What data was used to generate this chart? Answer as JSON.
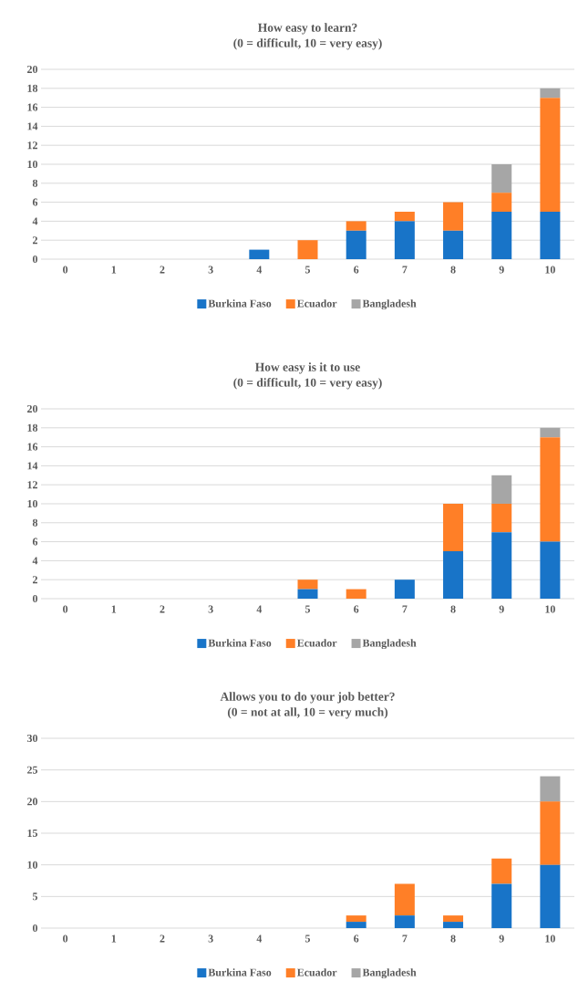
{
  "chart_data": [
    {
      "type": "bar",
      "title": "How easy to learn?",
      "subtitle": "(0 = difficult,     10 = very easy)",
      "categories": [
        "0",
        "1",
        "2",
        "3",
        "4",
        "5",
        "6",
        "7",
        "8",
        "9",
        "10"
      ],
      "stacked": true,
      "grid": "y",
      "legend": "bottom",
      "ylim": [
        0,
        20
      ],
      "yticks": [
        0,
        2,
        4,
        6,
        8,
        10,
        12,
        14,
        16,
        18,
        20
      ],
      "series": [
        {
          "name": "Burkina Faso",
          "color": "#1874c8",
          "values": [
            0,
            0,
            0,
            0,
            1,
            0,
            3,
            4,
            3,
            5,
            5
          ]
        },
        {
          "name": "Ecuador",
          "color": "#ff7f27",
          "values": [
            0,
            0,
            0,
            0,
            0,
            2,
            1,
            1,
            3,
            2,
            12
          ]
        },
        {
          "name": "Bangladesh",
          "color": "#a6a6a6",
          "values": [
            0,
            0,
            0,
            0,
            0,
            0,
            0,
            0,
            0,
            3,
            1
          ]
        }
      ]
    },
    {
      "type": "bar",
      "title": "How easy is it to use",
      "subtitle": "(0 = difficult,     10 = very easy)",
      "categories": [
        "0",
        "1",
        "2",
        "3",
        "4",
        "5",
        "6",
        "7",
        "8",
        "9",
        "10"
      ],
      "stacked": true,
      "grid": "y",
      "legend": "bottom",
      "ylim": [
        0,
        20
      ],
      "yticks": [
        0,
        2,
        4,
        6,
        8,
        10,
        12,
        14,
        16,
        18,
        20
      ],
      "series": [
        {
          "name": "Burkina Faso",
          "color": "#1874c8",
          "values": [
            0,
            0,
            0,
            0,
            0,
            1,
            0,
            2,
            5,
            7,
            6
          ]
        },
        {
          "name": "Ecuador",
          "color": "#ff7f27",
          "values": [
            0,
            0,
            0,
            0,
            0,
            1,
            1,
            0,
            5,
            3,
            11
          ]
        },
        {
          "name": "Bangladesh",
          "color": "#a6a6a6",
          "values": [
            0,
            0,
            0,
            0,
            0,
            0,
            0,
            0,
            0,
            3,
            1
          ]
        }
      ]
    },
    {
      "type": "bar",
      "title": "Allows you to do your job better?",
      "subtitle": "(0 = not at all,     10 = very much)",
      "categories": [
        "0",
        "1",
        "2",
        "3",
        "4",
        "5",
        "6",
        "7",
        "8",
        "9",
        "10"
      ],
      "stacked": true,
      "grid": "y",
      "legend": "bottom",
      "ylim": [
        0,
        30
      ],
      "yticks": [
        0,
        5,
        10,
        15,
        20,
        25,
        30
      ],
      "series": [
        {
          "name": "Burkina Faso",
          "color": "#1874c8",
          "values": [
            0,
            0,
            0,
            0,
            0,
            0,
            1,
            2,
            1,
            7,
            10
          ]
        },
        {
          "name": "Ecuador",
          "color": "#ff7f27",
          "values": [
            0,
            0,
            0,
            0,
            0,
            0,
            1,
            5,
            1,
            4,
            10
          ]
        },
        {
          "name": "Bangladesh",
          "color": "#a6a6a6",
          "values": [
            0,
            0,
            0,
            0,
            0,
            0,
            0,
            0,
            0,
            0,
            4
          ]
        }
      ]
    }
  ]
}
